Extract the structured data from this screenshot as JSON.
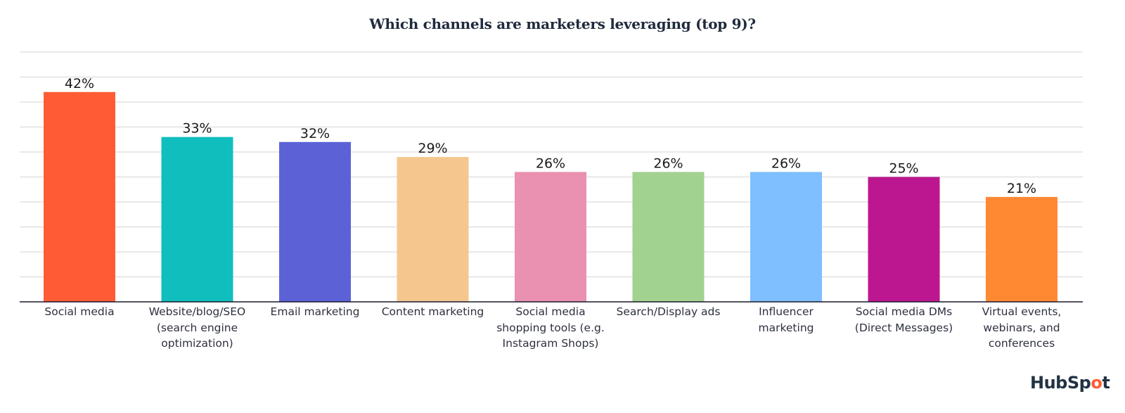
{
  "chart_data": {
    "type": "bar",
    "title": "Which channels are marketers leveraging (top 9)?",
    "xlabel": "",
    "ylabel": "",
    "ylim": [
      0,
      50
    ],
    "grid": true,
    "y_gridline_step": 5,
    "categories": [
      "Social media",
      "Website/blog/SEO\n(search engine\noptimization)",
      "Email marketing",
      "Content marketing",
      "Social media\nshopping tools (e.g.\nInstagram Shops)",
      "Search/Display ads",
      "Influencer\nmarketing",
      "Social media DMs\n(Direct Messages)",
      "Virtual events,\nwebinars, and\nconferences"
    ],
    "values": [
      42,
      33,
      32,
      29,
      26,
      26,
      26,
      25,
      21
    ],
    "value_labels": [
      "42%",
      "33%",
      "32%",
      "29%",
      "26%",
      "26%",
      "26%",
      "25%",
      "21%"
    ],
    "colors": [
      "#ff5c35",
      "#10bebd",
      "#5c62d6",
      "#f5c78e",
      "#ea90b1",
      "#a2d28f",
      "#7fbeff",
      "#bc1790",
      "#ff8933"
    ],
    "legend": "none"
  },
  "branding": {
    "logo_text_pre": "HubSp",
    "logo_text_o": "o",
    "logo_text_post": "t"
  }
}
